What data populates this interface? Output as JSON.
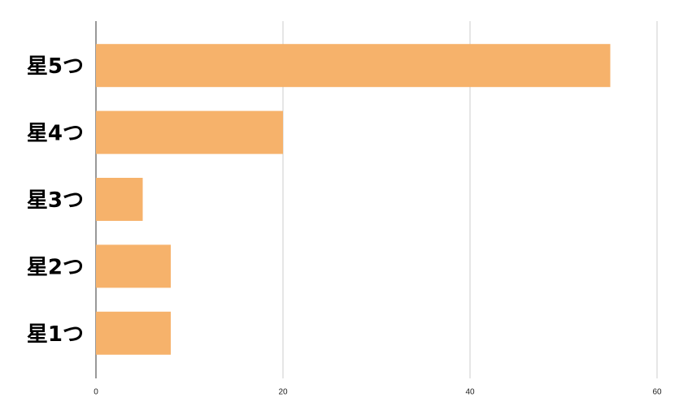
{
  "chart_data": {
    "type": "bar",
    "categories": [
      "星5つ",
      "星4つ",
      "星3つ",
      "星2つ",
      "星1つ"
    ],
    "values": [
      55,
      20,
      5,
      8,
      8
    ],
    "color": "#f6b26b",
    "xlim": [
      0,
      60
    ],
    "xticks": [
      0,
      20,
      40,
      60
    ],
    "grid": true
  }
}
